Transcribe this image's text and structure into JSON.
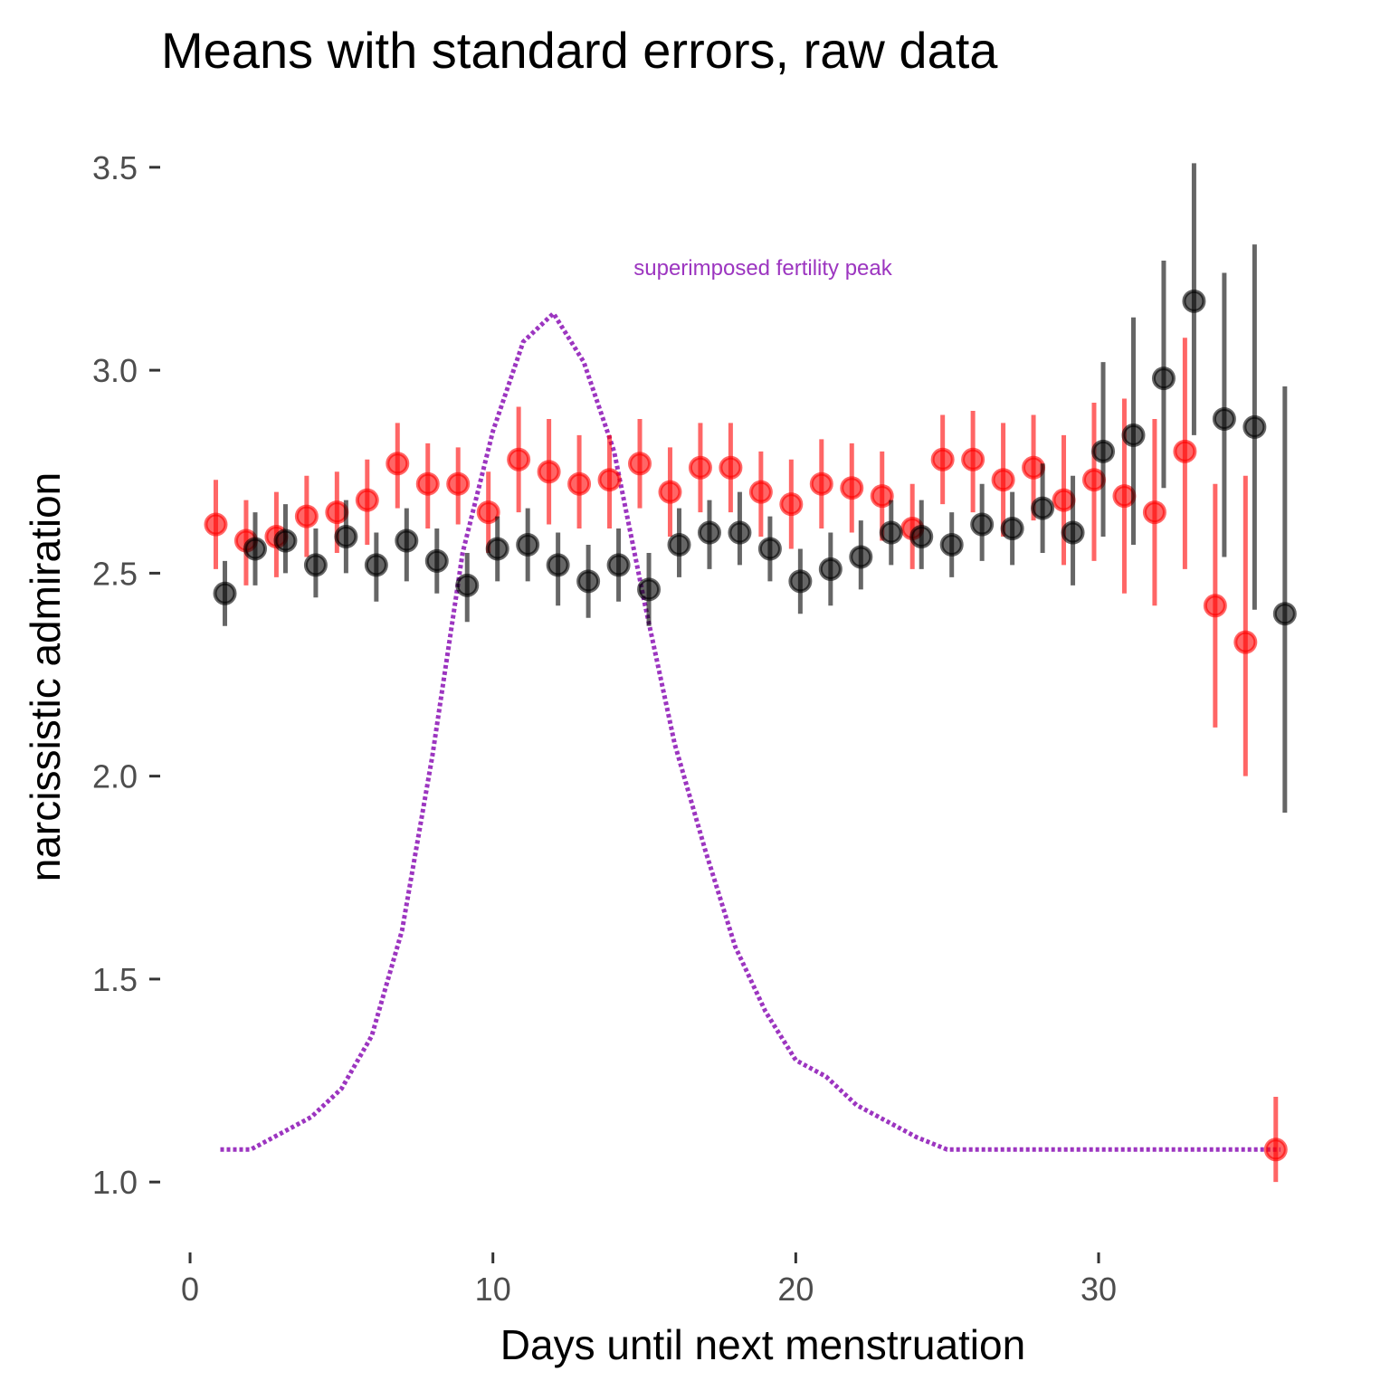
{
  "chart_data": {
    "type": "scatter",
    "title": "Means with standard errors, raw data",
    "xlabel": "Days until next menstruation",
    "ylabel": "narcissistic admiration",
    "xlim": [
      -0.3,
      37.5
    ],
    "ylim": [
      0.88,
      3.6
    ],
    "xticks": [
      0,
      10,
      20,
      30
    ],
    "xtick_labels": [
      "0",
      "10",
      "20",
      "30"
    ],
    "yticks": [
      1.0,
      1.5,
      2.0,
      2.5,
      3.0,
      3.5
    ],
    "ytick_labels": [
      "1.0",
      "1.5",
      "2.0",
      "2.5",
      "3.0",
      "3.5"
    ],
    "grid": false,
    "legend": "none",
    "annotation": {
      "text": "superimposed fertility peak",
      "x": 18.5,
      "y": 3.22,
      "color": "#9c35c0"
    },
    "series": [
      {
        "color": "#ff0000",
        "points": [
          {
            "x": 0.85,
            "y": 2.62,
            "lo": 2.51,
            "hi": 2.73
          },
          {
            "x": 1.85,
            "y": 2.58,
            "lo": 2.47,
            "hi": 2.68
          },
          {
            "x": 2.85,
            "y": 2.59,
            "lo": 2.49,
            "hi": 2.7
          },
          {
            "x": 3.85,
            "y": 2.64,
            "lo": 2.54,
            "hi": 2.74
          },
          {
            "x": 4.85,
            "y": 2.65,
            "lo": 2.55,
            "hi": 2.75
          },
          {
            "x": 5.85,
            "y": 2.68,
            "lo": 2.57,
            "hi": 2.78
          },
          {
            "x": 6.85,
            "y": 2.77,
            "lo": 2.66,
            "hi": 2.87
          },
          {
            "x": 7.85,
            "y": 2.72,
            "lo": 2.61,
            "hi": 2.82
          },
          {
            "x": 8.85,
            "y": 2.72,
            "lo": 2.62,
            "hi": 2.81
          },
          {
            "x": 9.85,
            "y": 2.65,
            "lo": 2.55,
            "hi": 2.75
          },
          {
            "x": 10.85,
            "y": 2.78,
            "lo": 2.65,
            "hi": 2.91
          },
          {
            "x": 11.85,
            "y": 2.75,
            "lo": 2.62,
            "hi": 2.88
          },
          {
            "x": 12.85,
            "y": 2.72,
            "lo": 2.61,
            "hi": 2.84
          },
          {
            "x": 13.85,
            "y": 2.73,
            "lo": 2.61,
            "hi": 2.84
          },
          {
            "x": 14.85,
            "y": 2.77,
            "lo": 2.66,
            "hi": 2.88
          },
          {
            "x": 15.85,
            "y": 2.7,
            "lo": 2.59,
            "hi": 2.81
          },
          {
            "x": 16.85,
            "y": 2.76,
            "lo": 2.65,
            "hi": 2.87
          },
          {
            "x": 17.85,
            "y": 2.76,
            "lo": 2.65,
            "hi": 2.87
          },
          {
            "x": 18.85,
            "y": 2.7,
            "lo": 2.59,
            "hi": 2.8
          },
          {
            "x": 19.85,
            "y": 2.67,
            "lo": 2.56,
            "hi": 2.78
          },
          {
            "x": 20.85,
            "y": 2.72,
            "lo": 2.61,
            "hi": 2.83
          },
          {
            "x": 21.85,
            "y": 2.71,
            "lo": 2.6,
            "hi": 2.82
          },
          {
            "x": 22.85,
            "y": 2.69,
            "lo": 2.58,
            "hi": 2.8
          },
          {
            "x": 23.85,
            "y": 2.61,
            "lo": 2.51,
            "hi": 2.72
          },
          {
            "x": 24.85,
            "y": 2.78,
            "lo": 2.67,
            "hi": 2.89
          },
          {
            "x": 25.85,
            "y": 2.78,
            "lo": 2.65,
            "hi": 2.9
          },
          {
            "x": 26.85,
            "y": 2.73,
            "lo": 2.59,
            "hi": 2.87
          },
          {
            "x": 27.85,
            "y": 2.76,
            "lo": 2.63,
            "hi": 2.89
          },
          {
            "x": 28.85,
            "y": 2.68,
            "lo": 2.52,
            "hi": 2.84
          },
          {
            "x": 29.85,
            "y": 2.73,
            "lo": 2.53,
            "hi": 2.92
          },
          {
            "x": 30.85,
            "y": 2.69,
            "lo": 2.45,
            "hi": 2.93
          },
          {
            "x": 31.85,
            "y": 2.65,
            "lo": 2.42,
            "hi": 2.88
          },
          {
            "x": 32.85,
            "y": 2.8,
            "lo": 2.51,
            "hi": 3.08
          },
          {
            "x": 33.85,
            "y": 2.42,
            "lo": 2.12,
            "hi": 2.72
          },
          {
            "x": 34.85,
            "y": 2.33,
            "lo": 2.0,
            "hi": 2.74
          },
          {
            "x": 35.85,
            "y": 1.08,
            "lo": 1.0,
            "hi": 1.21
          }
        ]
      },
      {
        "color": "#000000",
        "points": [
          {
            "x": 1.15,
            "y": 2.45,
            "lo": 2.37,
            "hi": 2.53
          },
          {
            "x": 2.15,
            "y": 2.56,
            "lo": 2.47,
            "hi": 2.65
          },
          {
            "x": 3.15,
            "y": 2.58,
            "lo": 2.5,
            "hi": 2.67
          },
          {
            "x": 4.15,
            "y": 2.52,
            "lo": 2.44,
            "hi": 2.61
          },
          {
            "x": 5.15,
            "y": 2.59,
            "lo": 2.5,
            "hi": 2.68
          },
          {
            "x": 6.15,
            "y": 2.52,
            "lo": 2.43,
            "hi": 2.6
          },
          {
            "x": 7.15,
            "y": 2.58,
            "lo": 2.48,
            "hi": 2.66
          },
          {
            "x": 8.15,
            "y": 2.53,
            "lo": 2.45,
            "hi": 2.61
          },
          {
            "x": 9.15,
            "y": 2.47,
            "lo": 2.38,
            "hi": 2.55
          },
          {
            "x": 10.15,
            "y": 2.56,
            "lo": 2.48,
            "hi": 2.64
          },
          {
            "x": 11.15,
            "y": 2.57,
            "lo": 2.48,
            "hi": 2.66
          },
          {
            "x": 12.15,
            "y": 2.52,
            "lo": 2.42,
            "hi": 2.6
          },
          {
            "x": 13.15,
            "y": 2.48,
            "lo": 2.39,
            "hi": 2.57
          },
          {
            "x": 14.15,
            "y": 2.52,
            "lo": 2.43,
            "hi": 2.61
          },
          {
            "x": 15.15,
            "y": 2.46,
            "lo": 2.37,
            "hi": 2.55
          },
          {
            "x": 16.15,
            "y": 2.57,
            "lo": 2.49,
            "hi": 2.66
          },
          {
            "x": 17.15,
            "y": 2.6,
            "lo": 2.51,
            "hi": 2.68
          },
          {
            "x": 18.15,
            "y": 2.6,
            "lo": 2.52,
            "hi": 2.7
          },
          {
            "x": 19.15,
            "y": 2.56,
            "lo": 2.48,
            "hi": 2.64
          },
          {
            "x": 20.15,
            "y": 2.48,
            "lo": 2.4,
            "hi": 2.56
          },
          {
            "x": 21.15,
            "y": 2.51,
            "lo": 2.42,
            "hi": 2.6
          },
          {
            "x": 22.15,
            "y": 2.54,
            "lo": 2.46,
            "hi": 2.63
          },
          {
            "x": 23.15,
            "y": 2.6,
            "lo": 2.52,
            "hi": 2.68
          },
          {
            "x": 24.15,
            "y": 2.59,
            "lo": 2.51,
            "hi": 2.68
          },
          {
            "x": 25.15,
            "y": 2.57,
            "lo": 2.49,
            "hi": 2.65
          },
          {
            "x": 26.15,
            "y": 2.62,
            "lo": 2.53,
            "hi": 2.72
          },
          {
            "x": 27.15,
            "y": 2.61,
            "lo": 2.52,
            "hi": 2.7
          },
          {
            "x": 28.15,
            "y": 2.66,
            "lo": 2.55,
            "hi": 2.77
          },
          {
            "x": 29.15,
            "y": 2.6,
            "lo": 2.47,
            "hi": 2.74
          },
          {
            "x": 30.15,
            "y": 2.8,
            "lo": 2.59,
            "hi": 3.02
          },
          {
            "x": 31.15,
            "y": 2.84,
            "lo": 2.57,
            "hi": 3.13
          },
          {
            "x": 32.15,
            "y": 2.98,
            "lo": 2.71,
            "hi": 3.27
          },
          {
            "x": 33.15,
            "y": 3.17,
            "lo": 2.84,
            "hi": 3.51
          },
          {
            "x": 34.15,
            "y": 2.88,
            "lo": 2.54,
            "hi": 3.24
          },
          {
            "x": 35.15,
            "y": 2.86,
            "lo": 2.41,
            "hi": 3.31
          },
          {
            "x": 36.15,
            "y": 2.4,
            "lo": 1.91,
            "hi": 2.96
          }
        ]
      }
    ],
    "curve": {
      "color": "#9c35c0",
      "style": "dotted",
      "points": [
        [
          1,
          1.08
        ],
        [
          2,
          1.08
        ],
        [
          3,
          1.12
        ],
        [
          4,
          1.16
        ],
        [
          5,
          1.23
        ],
        [
          6,
          1.36
        ],
        [
          7,
          1.62
        ],
        [
          8,
          2.05
        ],
        [
          9,
          2.55
        ],
        [
          10,
          2.85
        ],
        [
          11,
          3.07
        ],
        [
          12,
          3.14
        ],
        [
          13,
          3.02
        ],
        [
          14,
          2.8
        ],
        [
          15,
          2.43
        ],
        [
          16,
          2.08
        ],
        [
          17,
          1.82
        ],
        [
          18,
          1.58
        ],
        [
          19,
          1.42
        ],
        [
          20,
          1.3
        ],
        [
          21,
          1.26
        ],
        [
          22,
          1.19
        ],
        [
          23,
          1.15
        ],
        [
          24,
          1.11
        ],
        [
          25,
          1.08
        ],
        [
          26,
          1.08
        ],
        [
          27,
          1.08
        ],
        [
          28,
          1.08
        ],
        [
          29,
          1.08
        ],
        [
          30,
          1.08
        ],
        [
          31,
          1.08
        ],
        [
          32,
          1.08
        ],
        [
          33,
          1.08
        ],
        [
          34,
          1.08
        ],
        [
          35,
          1.08
        ],
        [
          36,
          1.08
        ]
      ]
    }
  }
}
